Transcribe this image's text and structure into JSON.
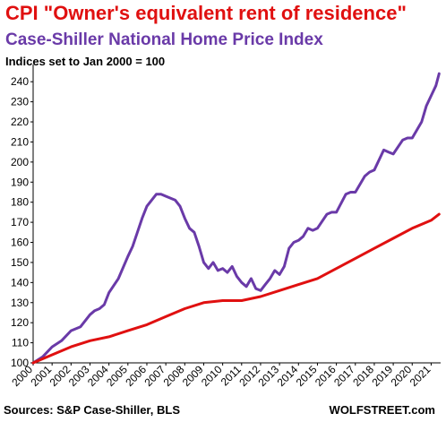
{
  "chart_data": {
    "type": "line",
    "title": "CPI \"Owner's equivalent rent of residence\"",
    "subtitle": "Case-Shiller National Home Price Index",
    "note": "Indices set to Jan 2000 = 100",
    "source": "Sources: S&P Case-Shiller, BLS",
    "brand": "WOLFSTREET.com",
    "ylim": [
      100,
      245
    ],
    "xlim": [
      2000,
      2021.5
    ],
    "yticks": [
      100,
      110,
      120,
      130,
      140,
      150,
      160,
      170,
      180,
      190,
      200,
      210,
      220,
      230,
      240
    ],
    "xticks": [
      2000,
      2001,
      2002,
      2003,
      2004,
      2005,
      2006,
      2007,
      2008,
      2009,
      2010,
      2011,
      2012,
      2013,
      2014,
      2015,
      2016,
      2017,
      2018,
      2019,
      2020,
      2021
    ],
    "grid": false,
    "series": [
      {
        "name": "Case-Shiller National Home Price Index",
        "color": "#6a3aa8",
        "x": [
          2000,
          2000.5,
          2001,
          2001.5,
          2002,
          2002.5,
          2003,
          2003.25,
          2003.5,
          2003.75,
          2004,
          2004.5,
          2005,
          2005.25,
          2005.5,
          2005.75,
          2006,
          2006.25,
          2006.5,
          2006.75,
          2007,
          2007.5,
          2007.75,
          2008,
          2008.25,
          2008.5,
          2008.75,
          2009,
          2009.25,
          2009.5,
          2009.75,
          2010,
          2010.25,
          2010.5,
          2010.75,
          2011,
          2011.25,
          2011.5,
          2011.75,
          2012,
          2012.25,
          2012.5,
          2012.75,
          2013,
          2013.25,
          2013.5,
          2013.75,
          2014,
          2014.25,
          2014.5,
          2014.75,
          2015,
          2015.5,
          2015.75,
          2016,
          2016.5,
          2016.75,
          2017,
          2017.5,
          2017.75,
          2018,
          2018.5,
          2018.75,
          2019,
          2019.5,
          2019.75,
          2020,
          2020.5,
          2020.75,
          2021,
          2021.25,
          2021.42
        ],
        "values": [
          100,
          103,
          108,
          111,
          116,
          118,
          124,
          126,
          127,
          129,
          135,
          142,
          153,
          158,
          165,
          172,
          178,
          181,
          184,
          184,
          183,
          181,
          178,
          172,
          167,
          165,
          158,
          150,
          147,
          150,
          146,
          147,
          145,
          148,
          143,
          140,
          138,
          142,
          137,
          136,
          139,
          142,
          146,
          144,
          148,
          157,
          160,
          161,
          163,
          167,
          166,
          167,
          174,
          175,
          175,
          184,
          185,
          185,
          193,
          195,
          196,
          206,
          205,
          204,
          211,
          212,
          212,
          220,
          228,
          233,
          238,
          244
        ]
      },
      {
        "name": "CPI Owner's equivalent rent of residence",
        "color": "#e01010",
        "x": [
          2000,
          2001,
          2002,
          2003,
          2004,
          2005,
          2006,
          2007,
          2008,
          2009,
          2010,
          2011,
          2012,
          2013,
          2014,
          2015,
          2016,
          2017,
          2018,
          2019,
          2020,
          2021,
          2021.42
        ],
        "values": [
          100,
          104,
          108,
          111,
          113,
          116,
          119,
          123,
          127,
          130,
          131,
          131,
          133,
          136,
          139,
          142,
          147,
          152,
          157,
          162,
          167,
          171,
          174
        ]
      }
    ]
  }
}
